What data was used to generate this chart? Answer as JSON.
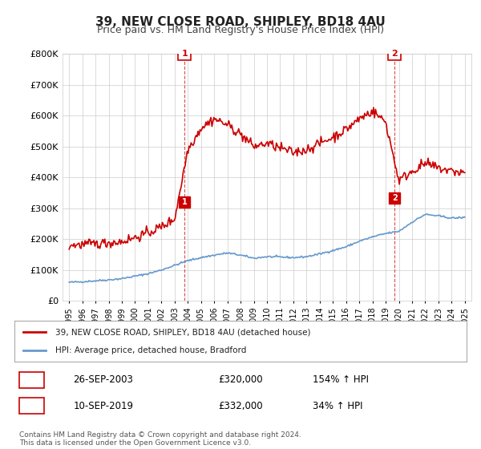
{
  "title": "39, NEW CLOSE ROAD, SHIPLEY, BD18 4AU",
  "subtitle": "Price paid vs. HM Land Registry's House Price Index (HPI)",
  "ylabel": "",
  "ylim": [
    0,
    800000
  ],
  "yticks": [
    0,
    100000,
    200000,
    300000,
    400000,
    500000,
    600000,
    700000,
    800000
  ],
  "ytick_labels": [
    "£0",
    "£100K",
    "£200K",
    "£300K",
    "£400K",
    "£500K",
    "£600K",
    "£700K",
    "£800K"
  ],
  "background_color": "#ffffff",
  "grid_color": "#cccccc",
  "red_line_color": "#cc0000",
  "blue_line_color": "#6699cc",
  "vline_color": "#cc0000",
  "marker1_x": 2003.75,
  "marker2_x": 2019.69,
  "marker1_price": 320000,
  "marker2_price": 332000,
  "marker1_date": "26-SEP-2003",
  "marker2_date": "10-SEP-2019",
  "marker1_pct": "154% ↑ HPI",
  "marker2_pct": "34% ↑ HPI",
  "legend_line1": "39, NEW CLOSE ROAD, SHIPLEY, BD18 4AU (detached house)",
  "legend_line2": "HPI: Average price, detached house, Bradford",
  "footer": "Contains HM Land Registry data © Crown copyright and database right 2024.\nThis data is licensed under the Open Government Licence v3.0.",
  "title_fontsize": 11,
  "subtitle_fontsize": 9,
  "hpi_years": [
    1995,
    1996,
    1997,
    1998,
    1999,
    2000,
    2001,
    2002,
    2003,
    2004,
    2005,
    2006,
    2007,
    2008,
    2009,
    2010,
    2011,
    2012,
    2013,
    2014,
    2015,
    2016,
    2017,
    2018,
    2019,
    2020,
    2021,
    2022,
    2023,
    2024,
    2025
  ],
  "hpi_values": [
    60000,
    62000,
    65000,
    68000,
    72000,
    80000,
    88000,
    100000,
    115000,
    130000,
    140000,
    148000,
    155000,
    148000,
    138000,
    143000,
    142000,
    140000,
    143000,
    152000,
    163000,
    175000,
    193000,
    207000,
    218000,
    225000,
    255000,
    280000,
    275000,
    268000,
    270000
  ],
  "red_years": [
    1995,
    1996,
    1997,
    1998,
    1999,
    2000,
    2001,
    2002,
    2003,
    2004,
    2005,
    2006,
    2007,
    2008,
    2009,
    2010,
    2011,
    2012,
    2013,
    2014,
    2015,
    2016,
    2017,
    2018,
    2019,
    2020,
    2021,
    2022,
    2023,
    2024,
    2025
  ],
  "red_values": [
    180000,
    182000,
    185000,
    188000,
    192000,
    205000,
    220000,
    240000,
    265000,
    490000,
    560000,
    590000,
    570000,
    540000,
    500000,
    510000,
    495000,
    480000,
    490000,
    510000,
    530000,
    555000,
    590000,
    615000,
    580000,
    390000,
    420000,
    445000,
    430000,
    420000,
    415000
  ]
}
